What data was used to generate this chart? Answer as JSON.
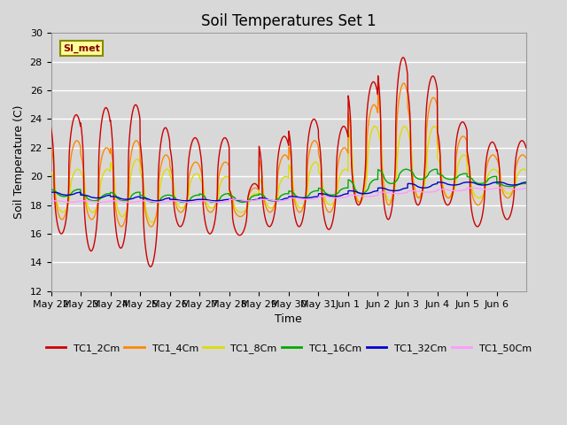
{
  "title": "Soil Temperatures Set 1",
  "xlabel": "Time",
  "ylabel": "Soil Temperature (C)",
  "ylim": [
    12,
    30
  ],
  "yticks": [
    12,
    14,
    16,
    18,
    20,
    22,
    24,
    26,
    28,
    30
  ],
  "annotation": "SI_met",
  "legend_entries": [
    "TC1_2Cm",
    "TC1_4Cm",
    "TC1_8Cm",
    "TC1_16Cm",
    "TC1_32Cm",
    "TC1_50Cm"
  ],
  "line_colors": [
    "#cc0000",
    "#ff8800",
    "#dddd00",
    "#00aa00",
    "#0000cc",
    "#ff99ff"
  ],
  "background_color": "#d8d8d8",
  "plot_bg_color": "#d8d8d8",
  "grid_color": "#ffffff",
  "xtick_labels": [
    "May 22",
    "May 23",
    "May 24",
    "May 25",
    "May 26",
    "May 27",
    "May 28",
    "May 29",
    "May 30",
    "May 31",
    "Jun 1",
    "Jun 2",
    "Jun 3",
    "Jun 4",
    "Jun 5",
    "Jun 6"
  ],
  "title_fontsize": 12,
  "axis_fontsize": 9,
  "tick_fontsize": 8
}
